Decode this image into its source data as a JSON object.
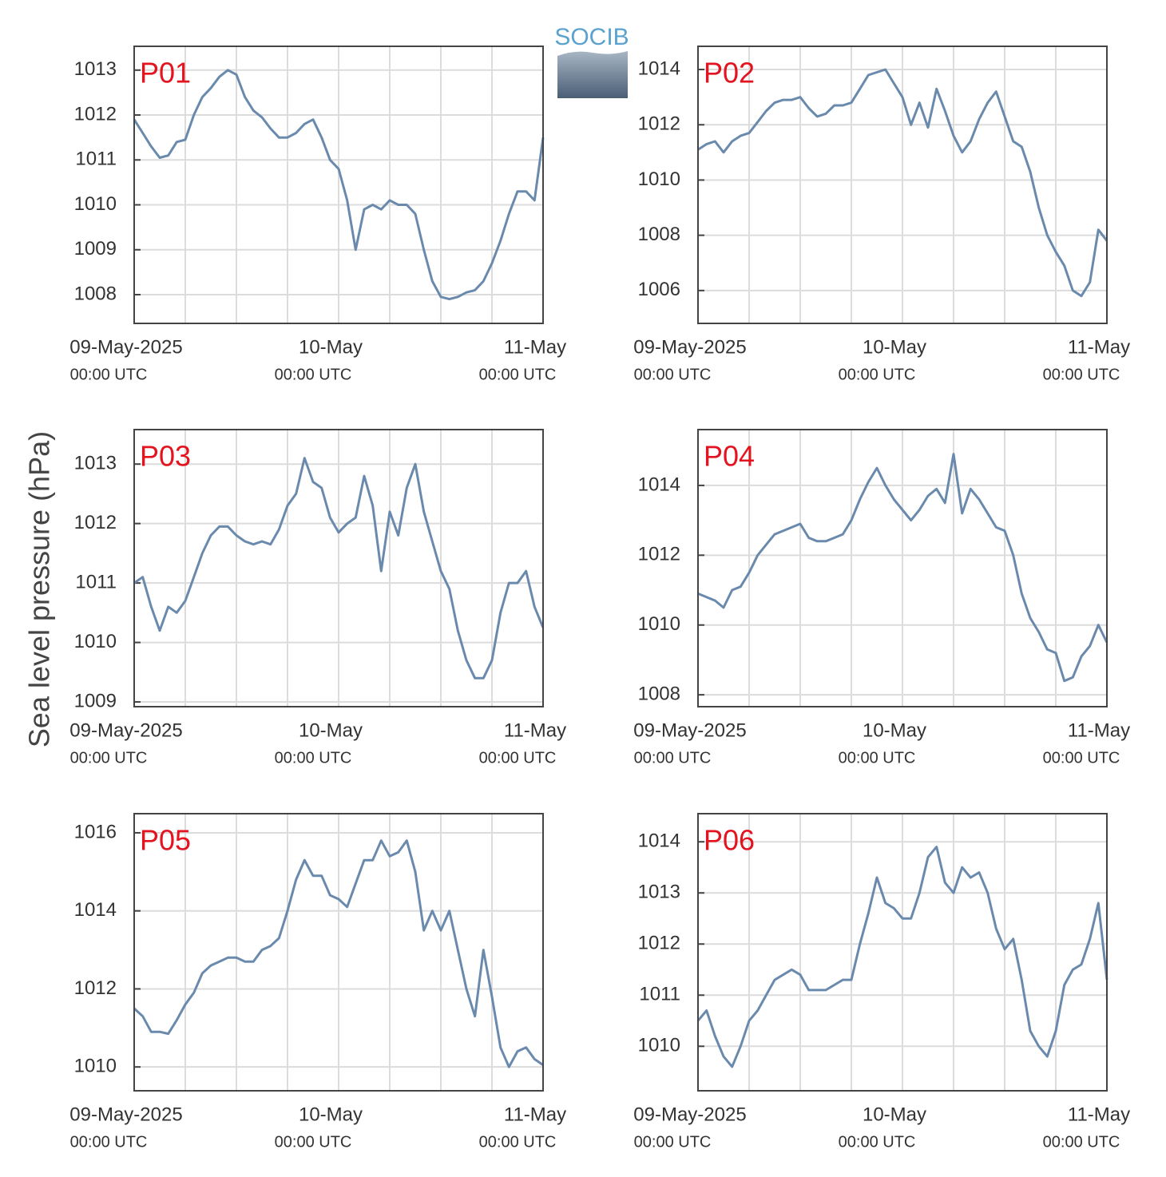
{
  "logo": "SOCIB",
  "ylabel": "Sea level pressure (hPa)",
  "chart_data": [
    {
      "type": "line",
      "title": "P01",
      "color": "#6a8aad",
      "grid": true,
      "x": [
        0,
        1,
        2,
        3,
        4,
        5,
        6,
        7,
        8,
        9,
        10,
        11,
        12,
        13,
        14,
        15,
        16,
        17,
        18,
        19,
        20,
        21,
        22,
        23,
        24,
        25,
        26,
        27,
        28,
        29,
        30,
        31,
        32,
        33,
        34,
        35,
        36,
        37,
        38,
        39,
        40,
        41,
        42,
        43,
        44,
        45,
        46,
        47,
        48
      ],
      "values": [
        1011.9,
        1011.6,
        1011.3,
        1011.05,
        1011.1,
        1011.4,
        1011.45,
        1012.0,
        1012.4,
        1012.6,
        1012.85,
        1013.0,
        1012.9,
        1012.4,
        1012.1,
        1011.95,
        1011.7,
        1011.5,
        1011.5,
        1011.6,
        1011.8,
        1011.9,
        1011.5,
        1011.0,
        1010.8,
        1010.1,
        1009.0,
        1009.9,
        1010.0,
        1009.9,
        1010.1,
        1010.0,
        1010.0,
        1009.8,
        1009.0,
        1008.3,
        1007.95,
        1007.9,
        1007.95,
        1008.05,
        1008.1,
        1008.3,
        1008.7,
        1009.2,
        1009.8,
        1010.3,
        1010.3,
        1010.1,
        1011.5
      ],
      "xlim": [
        0,
        48
      ],
      "xticks": [
        {
          "value": 0,
          "label": "09-May-2025",
          "sublabel": "00:00 UTC"
        },
        {
          "value": 24,
          "label": "10-May",
          "sublabel": "00:00 UTC"
        },
        {
          "value": 48,
          "label": "11-May",
          "sublabel": "00:00 UTC"
        }
      ],
      "xminor": [
        6,
        12,
        18,
        30,
        36,
        42
      ],
      "ylim": [
        1007.36,
        1013.53
      ],
      "yticks": [
        1008,
        1009,
        1010,
        1011,
        1012,
        1013
      ]
    },
    {
      "type": "line",
      "title": "P02",
      "color": "#6a8aad",
      "grid": true,
      "x": [
        0,
        1,
        2,
        3,
        4,
        5,
        6,
        7,
        8,
        9,
        10,
        11,
        12,
        13,
        14,
        15,
        16,
        17,
        18,
        19,
        20,
        21,
        22,
        23,
        24,
        25,
        26,
        27,
        28,
        29,
        30,
        31,
        32,
        33,
        34,
        35,
        36,
        37,
        38,
        39,
        40,
        41,
        42,
        43,
        44,
        45,
        46,
        47,
        48
      ],
      "values": [
        1011.1,
        1011.3,
        1011.4,
        1011.0,
        1011.4,
        1011.6,
        1011.7,
        1012.1,
        1012.5,
        1012.8,
        1012.9,
        1012.9,
        1013.0,
        1012.6,
        1012.3,
        1012.4,
        1012.7,
        1012.7,
        1012.8,
        1013.3,
        1013.8,
        1013.9,
        1014.0,
        1013.5,
        1013.0,
        1012.0,
        1012.8,
        1011.9,
        1013.3,
        1012.5,
        1011.6,
        1011.0,
        1011.4,
        1012.2,
        1012.8,
        1013.2,
        1012.3,
        1011.4,
        1011.2,
        1010.3,
        1009.0,
        1008.0,
        1007.4,
        1006.9,
        1006.0,
        1005.8,
        1006.3,
        1008.2,
        1007.8
      ],
      "xlim": [
        0,
        48
      ],
      "xticks": [
        {
          "value": 0,
          "label": "09-May-2025",
          "sublabel": "00:00 UTC"
        },
        {
          "value": 24,
          "label": "10-May",
          "sublabel": "00:00 UTC"
        },
        {
          "value": 48,
          "label": "11-May",
          "sublabel": "00:00 UTC"
        }
      ],
      "xminor": [
        6,
        12,
        18,
        30,
        36,
        42
      ],
      "ylim": [
        1004.81,
        1014.84
      ],
      "yticks": [
        1006,
        1008,
        1010,
        1012,
        1014
      ]
    },
    {
      "type": "line",
      "title": "P03",
      "color": "#6a8aad",
      "grid": true,
      "x": [
        0,
        1,
        2,
        3,
        4,
        5,
        6,
        7,
        8,
        9,
        10,
        11,
        12,
        13,
        14,
        15,
        16,
        17,
        18,
        19,
        20,
        21,
        22,
        23,
        24,
        25,
        26,
        27,
        28,
        29,
        30,
        31,
        32,
        33,
        34,
        35,
        36,
        37,
        38,
        39,
        40,
        41,
        42,
        43,
        44,
        45,
        46,
        47,
        48
      ],
      "values": [
        1011.0,
        1011.1,
        1010.6,
        1010.2,
        1010.6,
        1010.5,
        1010.7,
        1011.1,
        1011.5,
        1011.8,
        1011.95,
        1011.95,
        1011.8,
        1011.7,
        1011.65,
        1011.7,
        1011.65,
        1011.9,
        1012.3,
        1012.5,
        1013.1,
        1012.7,
        1012.6,
        1012.1,
        1011.85,
        1012.0,
        1012.1,
        1012.8,
        1012.3,
        1011.2,
        1012.2,
        1011.8,
        1012.6,
        1013.0,
        1012.2,
        1011.7,
        1011.2,
        1010.9,
        1010.2,
        1009.7,
        1009.4,
        1009.4,
        1009.7,
        1010.5,
        1011.0,
        1011.0,
        1011.2,
        1010.6,
        1010.25
      ],
      "xlim": [
        0,
        48
      ],
      "xticks": [
        {
          "value": 0,
          "label": "09-May-2025",
          "sublabel": "00:00 UTC"
        },
        {
          "value": 24,
          "label": "10-May",
          "sublabel": "00:00 UTC"
        },
        {
          "value": 48,
          "label": "11-May",
          "sublabel": "00:00 UTC"
        }
      ],
      "xminor": [
        6,
        12,
        18,
        30,
        36,
        42
      ],
      "ylim": [
        1008.92,
        1013.58
      ],
      "yticks": [
        1009,
        1010,
        1011,
        1012,
        1013
      ]
    },
    {
      "type": "line",
      "title": "P04",
      "color": "#6a8aad",
      "grid": true,
      "x": [
        0,
        1,
        2,
        3,
        4,
        5,
        6,
        7,
        8,
        9,
        10,
        11,
        12,
        13,
        14,
        15,
        16,
        17,
        18,
        19,
        20,
        21,
        22,
        23,
        24,
        25,
        26,
        27,
        28,
        29,
        30,
        31,
        32,
        33,
        34,
        35,
        36,
        37,
        38,
        39,
        40,
        41,
        42,
        43,
        44,
        45,
        46,
        47,
        48
      ],
      "values": [
        1010.9,
        1010.8,
        1010.7,
        1010.5,
        1011.0,
        1011.1,
        1011.5,
        1012.0,
        1012.3,
        1012.6,
        1012.7,
        1012.8,
        1012.9,
        1012.5,
        1012.4,
        1012.4,
        1012.5,
        1012.6,
        1013.0,
        1013.6,
        1014.1,
        1014.5,
        1014.0,
        1013.6,
        1013.3,
        1013.0,
        1013.3,
        1013.7,
        1013.9,
        1013.5,
        1014.9,
        1013.2,
        1013.9,
        1013.6,
        1013.2,
        1012.8,
        1012.7,
        1012.0,
        1010.9,
        1010.2,
        1009.8,
        1009.3,
        1009.2,
        1008.4,
        1008.5,
        1009.1,
        1009.4,
        1010.0,
        1009.5
      ],
      "xlim": [
        0,
        48
      ],
      "xticks": [
        {
          "value": 0,
          "label": "09-May-2025",
          "sublabel": "00:00 UTC"
        },
        {
          "value": 24,
          "label": "10-May",
          "sublabel": "00:00 UTC"
        },
        {
          "value": 48,
          "label": "11-May",
          "sublabel": "00:00 UTC"
        }
      ],
      "xminor": [
        6,
        12,
        18,
        30,
        36,
        42
      ],
      "ylim": [
        1007.66,
        1015.6
      ],
      "yticks": [
        1008,
        1010,
        1012,
        1014
      ]
    },
    {
      "type": "line",
      "title": "P05",
      "color": "#6a8aad",
      "grid": true,
      "x": [
        0,
        1,
        2,
        3,
        4,
        5,
        6,
        7,
        8,
        9,
        10,
        11,
        12,
        13,
        14,
        15,
        16,
        17,
        18,
        19,
        20,
        21,
        22,
        23,
        24,
        25,
        26,
        27,
        28,
        29,
        30,
        31,
        32,
        33,
        34,
        35,
        36,
        37,
        38,
        39,
        40,
        41,
        42,
        43,
        44,
        45,
        46,
        47,
        48
      ],
      "values": [
        1011.5,
        1011.3,
        1010.9,
        1010.9,
        1010.85,
        1011.2,
        1011.6,
        1011.9,
        1012.4,
        1012.6,
        1012.7,
        1012.8,
        1012.8,
        1012.7,
        1012.7,
        1013.0,
        1013.1,
        1013.3,
        1014.0,
        1014.8,
        1015.3,
        1014.9,
        1014.9,
        1014.4,
        1014.3,
        1014.1,
        1014.7,
        1015.3,
        1015.3,
        1015.8,
        1015.4,
        1015.5,
        1015.8,
        1015.0,
        1013.5,
        1014.0,
        1013.5,
        1014.0,
        1013.0,
        1012.0,
        1011.3,
        1013.0,
        1011.8,
        1010.5,
        1010.0,
        1010.4,
        1010.5,
        1010.2,
        1010.05
      ],
      "xlim": [
        0,
        48
      ],
      "xticks": [
        {
          "value": 0,
          "label": "09-May-2025",
          "sublabel": "00:00 UTC"
        },
        {
          "value": 24,
          "label": "10-May",
          "sublabel": "00:00 UTC"
        },
        {
          "value": 48,
          "label": "11-May",
          "sublabel": "00:00 UTC"
        }
      ],
      "xminor": [
        6,
        12,
        18,
        30,
        36,
        42
      ],
      "ylim": [
        1009.39,
        1016.49
      ],
      "yticks": [
        1010,
        1012,
        1014,
        1016
      ]
    },
    {
      "type": "line",
      "title": "P06",
      "color": "#6a8aad",
      "grid": true,
      "x": [
        0,
        1,
        2,
        3,
        4,
        5,
        6,
        7,
        8,
        9,
        10,
        11,
        12,
        13,
        14,
        15,
        16,
        17,
        18,
        19,
        20,
        21,
        22,
        23,
        24,
        25,
        26,
        27,
        28,
        29,
        30,
        31,
        32,
        33,
        34,
        35,
        36,
        37,
        38,
        39,
        40,
        41,
        42,
        43,
        44,
        45,
        46,
        47,
        48
      ],
      "values": [
        1010.5,
        1010.7,
        1010.2,
        1009.8,
        1009.6,
        1010.0,
        1010.5,
        1010.7,
        1011.0,
        1011.3,
        1011.4,
        1011.5,
        1011.4,
        1011.1,
        1011.1,
        1011.1,
        1011.2,
        1011.3,
        1011.3,
        1012.0,
        1012.6,
        1013.3,
        1012.8,
        1012.7,
        1012.5,
        1012.5,
        1013.0,
        1013.7,
        1013.9,
        1013.2,
        1013.0,
        1013.5,
        1013.3,
        1013.4,
        1013.0,
        1012.3,
        1011.9,
        1012.1,
        1011.3,
        1010.3,
        1010.0,
        1009.8,
        1010.3,
        1011.2,
        1011.5,
        1011.6,
        1012.1,
        1012.8,
        1011.3
      ],
      "xlim": [
        0,
        48
      ],
      "xticks": [
        {
          "value": 0,
          "label": "09-May-2025",
          "sublabel": "00:00 UTC"
        },
        {
          "value": 24,
          "label": "10-May",
          "sublabel": "00:00 UTC"
        },
        {
          "value": 48,
          "label": "11-May",
          "sublabel": "00:00 UTC"
        }
      ],
      "xminor": [
        6,
        12,
        18,
        30,
        36,
        42
      ],
      "ylim": [
        1009.13,
        1014.55
      ],
      "yticks": [
        1010,
        1011,
        1012,
        1013,
        1014
      ]
    }
  ]
}
